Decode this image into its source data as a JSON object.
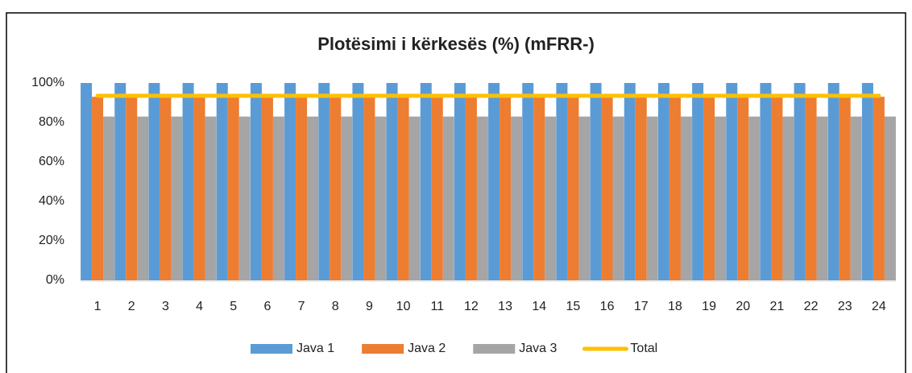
{
  "chart_data": {
    "type": "bar",
    "title": "Plotësimi i kërkesës (%) (mFRR-)",
    "categories": [
      "1",
      "2",
      "3",
      "4",
      "5",
      "6",
      "7",
      "8",
      "9",
      "10",
      "11",
      "12",
      "13",
      "14",
      "15",
      "16",
      "17",
      "18",
      "19",
      "20",
      "21",
      "22",
      "23",
      "24"
    ],
    "series": [
      {
        "name": "Java 1",
        "color": "#5B9BD5",
        "type": "bar",
        "values": [
          100,
          100,
          100,
          100,
          100,
          100,
          100,
          100,
          100,
          100,
          100,
          100,
          100,
          100,
          100,
          100,
          100,
          100,
          100,
          100,
          100,
          100,
          100,
          100
        ]
      },
      {
        "name": "Java 2",
        "color": "#ED7D31",
        "type": "bar",
        "values": [
          93,
          93,
          93,
          93,
          93,
          93,
          93,
          93,
          93,
          93,
          93,
          93,
          93,
          93,
          93,
          93,
          93,
          93,
          93,
          93,
          93,
          93,
          93,
          93
        ]
      },
      {
        "name": "Java 3",
        "color": "#A5A5A5",
        "type": "bar",
        "values": [
          83,
          83,
          83,
          83,
          83,
          83,
          83,
          83,
          83,
          83,
          83,
          83,
          83,
          83,
          83,
          83,
          83,
          83,
          83,
          83,
          83,
          83,
          83,
          83
        ]
      },
      {
        "name": "Total",
        "color": "#FFC000",
        "type": "line",
        "values": [
          93.5,
          93.5,
          93.5,
          93.5,
          93.5,
          93.5,
          93.5,
          93.5,
          93.5,
          93.5,
          93.5,
          93.5,
          93.5,
          93.5,
          93.5,
          93.5,
          93.5,
          93.5,
          93.5,
          93.5,
          93.5,
          93.5,
          93.5,
          93.5
        ]
      }
    ],
    "ylim": [
      0,
      100
    ],
    "yticks": [
      {
        "value": 0,
        "label": "0%"
      },
      {
        "value": 20,
        "label": "20%"
      },
      {
        "value": 40,
        "label": "40%"
      },
      {
        "value": 60,
        "label": "60%"
      },
      {
        "value": 80,
        "label": "80%"
      },
      {
        "value": 100,
        "label": "100%"
      }
    ],
    "grid": false,
    "legend": "bottom"
  }
}
